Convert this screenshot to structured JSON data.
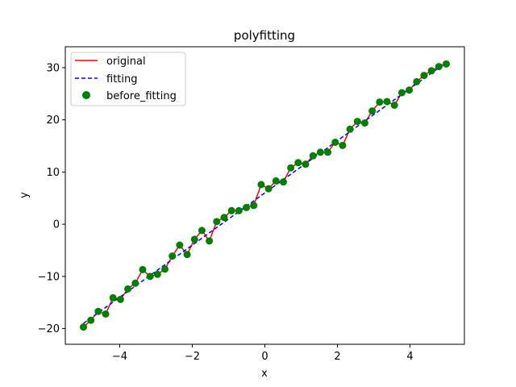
{
  "chart_data": {
    "type": "line",
    "title": "polyfitting",
    "xlabel": "x",
    "ylabel": "y",
    "xlim": [
      -5.5,
      5.5
    ],
    "ylim": [
      -23,
      34
    ],
    "xticks": [
      -4,
      -2,
      0,
      2,
      4
    ],
    "yticks": [
      -20,
      -10,
      0,
      10,
      20,
      30
    ],
    "grid": false,
    "legend_position": "top-left",
    "x": [
      -5.0,
      -4.796,
      -4.592,
      -4.388,
      -4.184,
      -3.98,
      -3.776,
      -3.571,
      -3.367,
      -3.163,
      -2.959,
      -2.755,
      -2.551,
      -2.347,
      -2.143,
      -1.939,
      -1.735,
      -1.531,
      -1.327,
      -1.122,
      -0.918,
      -0.714,
      -0.51,
      -0.306,
      -0.102,
      0.102,
      0.306,
      0.51,
      0.714,
      0.918,
      1.122,
      1.327,
      1.531,
      1.735,
      1.939,
      2.143,
      2.347,
      2.551,
      2.755,
      2.959,
      3.163,
      3.367,
      3.571,
      3.776,
      3.98,
      4.184,
      4.388,
      4.592,
      4.796,
      5.0
    ],
    "series": [
      {
        "name": "original",
        "style": "solid-line",
        "color": "#ff0000",
        "values": [
          -19.7,
          -18.4,
          -16.7,
          -17.2,
          -14.1,
          -14.4,
          -12.4,
          -11.3,
          -8.7,
          -10.0,
          -9.6,
          -8.6,
          -6.1,
          -4.0,
          -5.8,
          -2.9,
          -1.2,
          -3.2,
          0.5,
          1.3,
          2.6,
          2.6,
          3.2,
          3.6,
          7.6,
          6.8,
          8.3,
          8.1,
          10.8,
          11.8,
          11.5,
          13.1,
          13.8,
          13.8,
          15.7,
          15.1,
          18.2,
          19.7,
          19.4,
          21.7,
          23.4,
          23.5,
          22.8,
          25.2,
          25.7,
          27.3,
          28.5,
          29.4,
          30.2,
          30.7
        ]
      },
      {
        "name": "fitting",
        "style": "dashed-line",
        "color": "#0000ff",
        "endpoints_x": [
          -5.0,
          5.0
        ],
        "endpoints_y": [
          -19.0,
          31.0
        ]
      },
      {
        "name": "before_fitting",
        "style": "scatter",
        "color": "#008000"
      }
    ]
  }
}
